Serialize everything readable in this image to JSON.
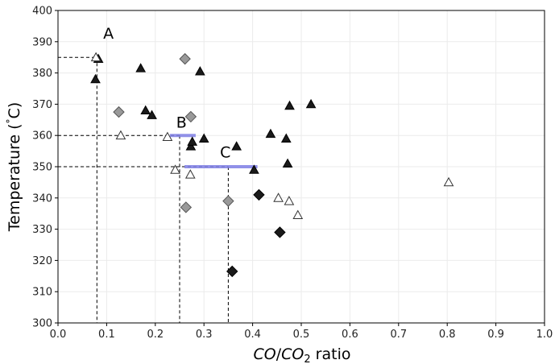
{
  "chart_data": {
    "type": "scatter",
    "title": "",
    "xlabel": "CO/CO₂ ratio",
    "xlabel_parts": {
      "a": "CO",
      "sep": "/",
      "b": "CO",
      "sub": "2",
      "suffix": " ratio"
    },
    "ylabel": "Temperature (°C)",
    "ylabel_parts": {
      "prefix": "Temperature (",
      "deg": "°",
      "suffix": "C)"
    },
    "xlim": [
      0.0,
      1.0
    ],
    "ylim": [
      300,
      400
    ],
    "xticks": [
      0.0,
      0.1,
      0.2,
      0.3,
      0.4,
      0.5,
      0.6,
      0.7,
      0.8,
      0.9,
      1.0
    ],
    "yticks": [
      300,
      310,
      320,
      330,
      340,
      350,
      360,
      370,
      380,
      390,
      400
    ],
    "grid": true,
    "colors": {
      "black": "#1a1a1a",
      "gray": "#999999",
      "open": "#ffffff",
      "band": "#8080e6"
    },
    "series": [
      {
        "marker": "filled-triangle",
        "points": [
          [
            0.077,
            378
          ],
          [
            0.083,
            384.5
          ],
          [
            0.17,
            381.5
          ],
          [
            0.18,
            368
          ],
          [
            0.193,
            366.5
          ],
          [
            0.273,
            356.5
          ],
          [
            0.276,
            358
          ],
          [
            0.292,
            380.5
          ],
          [
            0.3,
            359
          ],
          [
            0.367,
            356.5
          ],
          [
            0.403,
            349
          ],
          [
            0.437,
            360.5
          ],
          [
            0.469,
            359
          ],
          [
            0.472,
            351
          ],
          [
            0.476,
            369.5
          ],
          [
            0.52,
            370
          ]
        ]
      },
      {
        "marker": "open-triangle",
        "points": [
          [
            0.078,
            385
          ],
          [
            0.129,
            360
          ],
          [
            0.225,
            359.5
          ],
          [
            0.241,
            349
          ],
          [
            0.272,
            347.5
          ],
          [
            0.453,
            340
          ],
          [
            0.475,
            339
          ],
          [
            0.493,
            334.5
          ],
          [
            0.803,
            345
          ]
        ]
      },
      {
        "marker": "gray-diamond",
        "points": [
          [
            0.125,
            367.5
          ],
          [
            0.261,
            384.5
          ],
          [
            0.273,
            366
          ],
          [
            0.263,
            337
          ],
          [
            0.35,
            339
          ]
        ]
      },
      {
        "marker": "black-diamond",
        "points": [
          [
            0.413,
            341
          ],
          [
            0.456,
            329
          ],
          [
            0.358,
            316.5
          ]
        ]
      }
    ],
    "reference_lines": [
      {
        "x": 0.08,
        "y": 385
      },
      {
        "x": 0.25,
        "y": 360
      },
      {
        "x": 0.35,
        "y": 350
      }
    ],
    "bands": [
      {
        "x0": 0.23,
        "x1": 0.283,
        "y": 360
      },
      {
        "x0": 0.26,
        "x1": 0.41,
        "y": 350
      }
    ],
    "annotations": [
      {
        "text": "A",
        "x": 0.093,
        "y": 391
      },
      {
        "text": "B",
        "x": 0.243,
        "y": 362.5
      },
      {
        "text": "C",
        "x": 0.333,
        "y": 353
      }
    ]
  }
}
